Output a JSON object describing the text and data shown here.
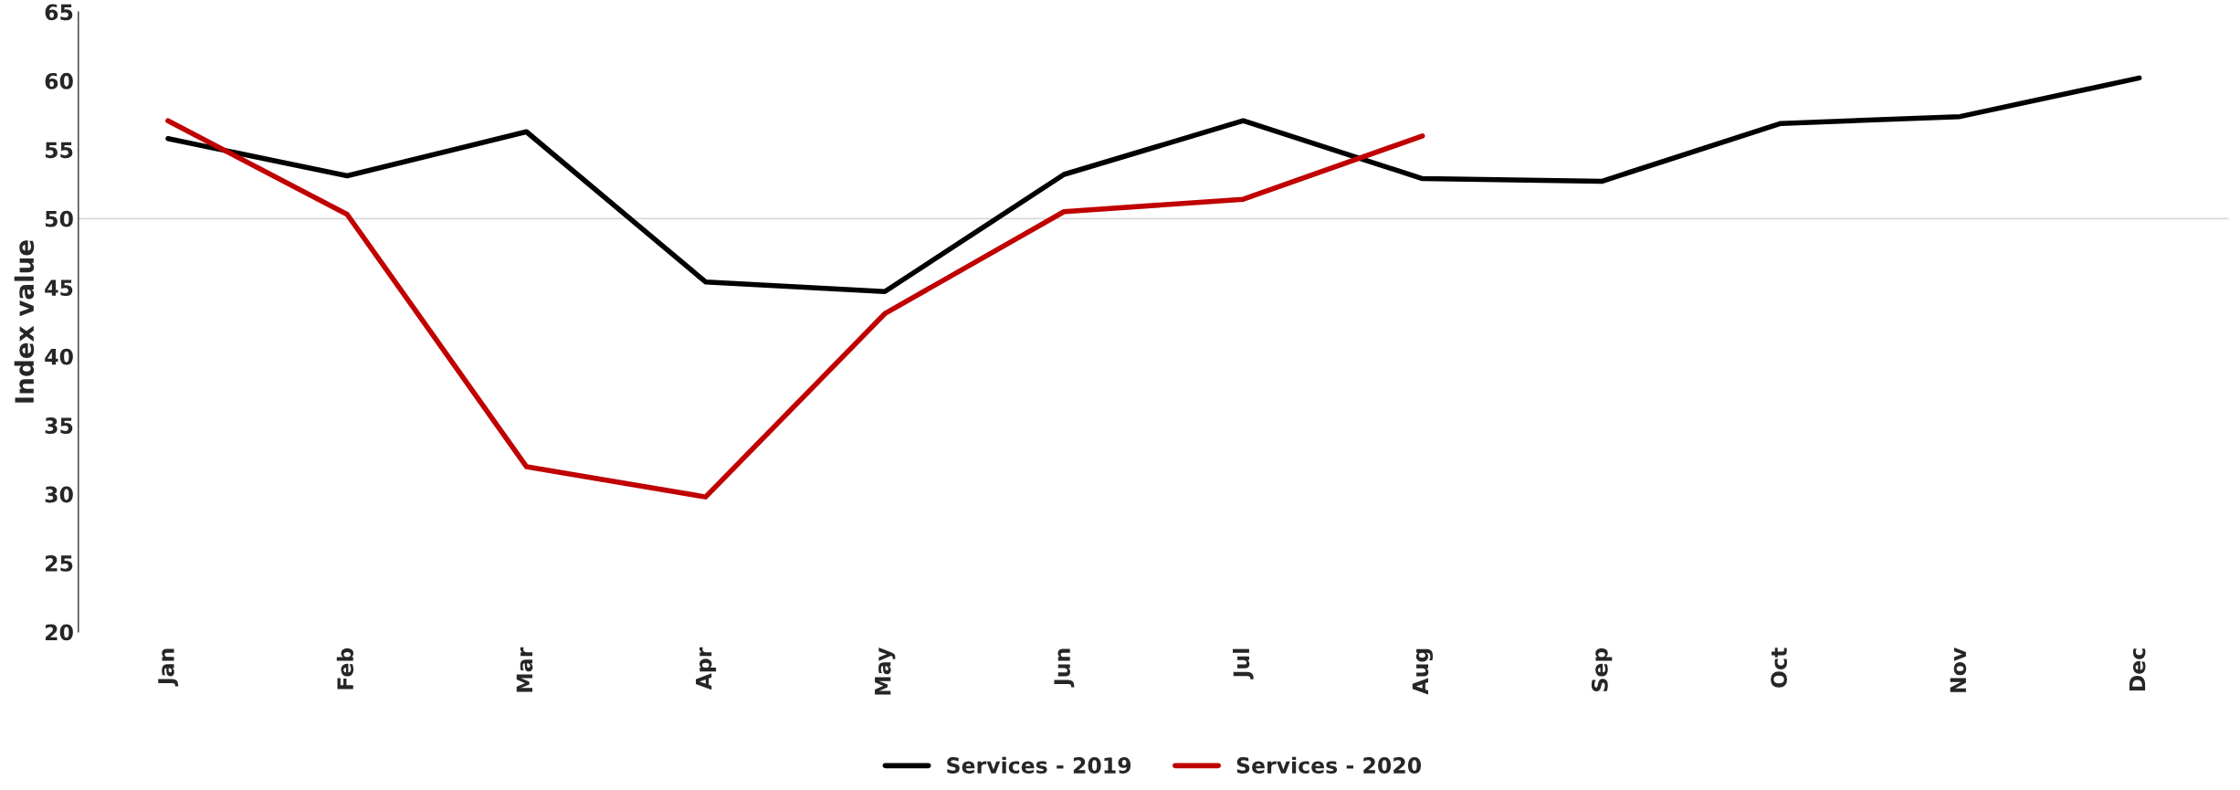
{
  "chart_data": {
    "type": "line",
    "ylabel": "Index value",
    "categories": [
      "Jan",
      "Feb",
      "Mar",
      "Apr",
      "May",
      "Jun",
      "Jul",
      "Aug",
      "Sep",
      "Oct",
      "Nov",
      "Dec"
    ],
    "series": [
      {
        "name": "Services - 2019",
        "color": "#000000",
        "values": [
          55.8,
          53.1,
          56.3,
          45.4,
          44.7,
          53.2,
          57.1,
          52.9,
          52.7,
          56.9,
          57.4,
          60.2
        ]
      },
      {
        "name": "Services - 2020",
        "color": "#c00000",
        "values": [
          57.1,
          50.3,
          32.0,
          29.8,
          43.1,
          50.5,
          51.4,
          56.0,
          null,
          null,
          null,
          null
        ]
      }
    ],
    "ylim": [
      20,
      65
    ],
    "yticks": [
      20,
      25,
      30,
      35,
      40,
      45,
      50,
      55,
      60,
      65
    ],
    "ref_lines": [
      {
        "axis": "y",
        "value": 50,
        "color": "#d9d9d9"
      }
    ],
    "grid": false,
    "legend": "bottom",
    "marker": "none",
    "line_style": "solid"
  }
}
